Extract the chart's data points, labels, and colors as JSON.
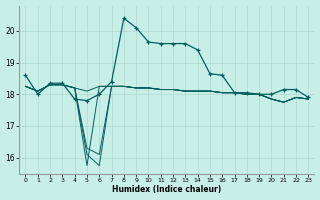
{
  "xlabel": "Humidex (Indice chaleur)",
  "background_color": "#c8eee8",
  "grid_color": "#aed8d0",
  "line_color": "#006060",
  "xlim": [
    -0.5,
    23.5
  ],
  "ylim": [
    15.5,
    20.8
  ],
  "yticks": [
    16,
    17,
    18,
    19,
    20
  ],
  "xticks": [
    0,
    1,
    2,
    3,
    4,
    5,
    6,
    7,
    8,
    9,
    10,
    11,
    12,
    13,
    14,
    15,
    16,
    17,
    18,
    19,
    20,
    21,
    22,
    23
  ],
  "line1_x": [
    0,
    1,
    2,
    3,
    4,
    5,
    6,
    7,
    8,
    9,
    10,
    11,
    12,
    13,
    14,
    15,
    16,
    17,
    18,
    19,
    20,
    21,
    22,
    23
  ],
  "line1_y": [
    18.6,
    18.0,
    18.35,
    18.35,
    17.85,
    17.8,
    18.0,
    18.4,
    20.4,
    20.1,
    19.65,
    19.6,
    19.6,
    19.6,
    19.4,
    18.65,
    18.6,
    18.05,
    18.05,
    18.0,
    18.0,
    18.15,
    18.15,
    17.9
  ],
  "line2_x": [
    0,
    1,
    2,
    3,
    4,
    5,
    6,
    7,
    8,
    9,
    10,
    11,
    12,
    13,
    14,
    15,
    16,
    17,
    18,
    19,
    20,
    21,
    22,
    23
  ],
  "line2_y": [
    18.25,
    18.1,
    18.3,
    18.3,
    18.2,
    18.1,
    18.25,
    18.25,
    18.25,
    18.2,
    18.2,
    18.15,
    18.15,
    18.1,
    18.1,
    18.1,
    18.05,
    18.05,
    18.0,
    18.0,
    17.85,
    17.75,
    17.9,
    17.85
  ],
  "line3_x": [
    0,
    1,
    2,
    3,
    4,
    5,
    6,
    7,
    8,
    9,
    10,
    11,
    12,
    13,
    14,
    15,
    16,
    17,
    18,
    19,
    20,
    21,
    22,
    23
  ],
  "line3_y": [
    18.25,
    18.1,
    18.3,
    18.3,
    18.2,
    15.75,
    18.25,
    18.25,
    18.25,
    18.2,
    18.2,
    18.15,
    18.15,
    18.1,
    18.1,
    18.1,
    18.05,
    18.05,
    18.0,
    18.0,
    17.85,
    17.75,
    17.9,
    17.85
  ],
  "line4_x": [
    0,
    1,
    2,
    3,
    4,
    5,
    6,
    7,
    8,
    9,
    10,
    11,
    12,
    13,
    14,
    15,
    16,
    17,
    18,
    19,
    20,
    21,
    22,
    23
  ],
  "line4_y": [
    18.25,
    18.1,
    18.3,
    18.3,
    18.2,
    16.1,
    15.75,
    18.25,
    18.25,
    18.2,
    18.2,
    18.15,
    18.15,
    18.1,
    18.1,
    18.1,
    18.05,
    18.05,
    18.0,
    18.0,
    17.85,
    17.75,
    17.9,
    17.85
  ],
  "line5_x": [
    0,
    1,
    2,
    3,
    4,
    5,
    6,
    7,
    8,
    9,
    10,
    11,
    12,
    13,
    14,
    15,
    16,
    17,
    18,
    19,
    20,
    21,
    22,
    23
  ],
  "line5_y": [
    18.25,
    18.1,
    18.3,
    18.3,
    18.2,
    16.3,
    16.1,
    18.25,
    18.25,
    18.2,
    18.2,
    18.15,
    18.15,
    18.1,
    18.1,
    18.1,
    18.05,
    18.05,
    18.0,
    18.0,
    17.85,
    17.75,
    17.9,
    17.85
  ]
}
